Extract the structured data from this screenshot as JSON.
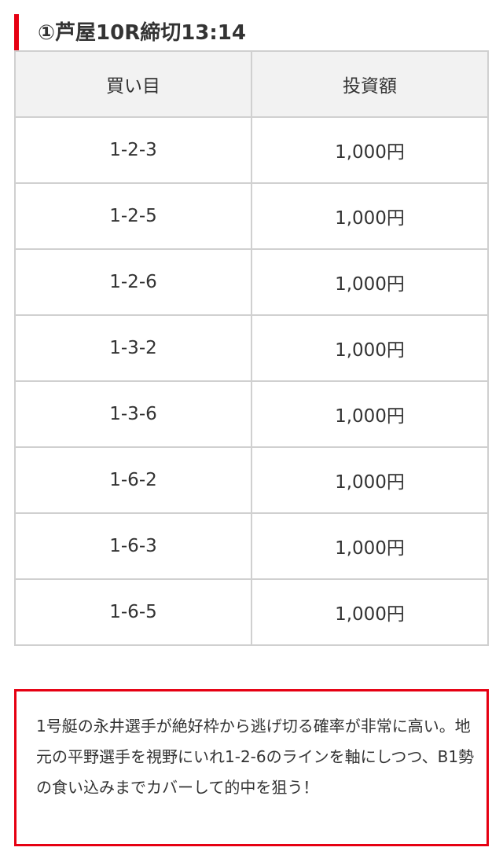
{
  "heading": {
    "title": "①芦屋10R締切13:14",
    "accent_color": "#e60012"
  },
  "table": {
    "headers": [
      "買い目",
      "投資額"
    ],
    "rows": [
      {
        "combo": "1-2-3",
        "amount": "1,000円"
      },
      {
        "combo": "1-2-5",
        "amount": "1,000円"
      },
      {
        "combo": "1-2-6",
        "amount": "1,000円"
      },
      {
        "combo": "1-3-2",
        "amount": "1,000円"
      },
      {
        "combo": "1-3-6",
        "amount": "1,000円"
      },
      {
        "combo": "1-6-2",
        "amount": "1,000円"
      },
      {
        "combo": "1-6-3",
        "amount": "1,000円"
      },
      {
        "combo": "1-6-5",
        "amount": "1,000円"
      }
    ]
  },
  "note": {
    "text": "1号艇の永井選手が絶好枠から逃げ切る確率が非常に高い。地元の平野選手を視野にいれ1-2-6のラインを軸にしつつ、B1勢の食い込みまでカバーして的中を狙う！"
  }
}
